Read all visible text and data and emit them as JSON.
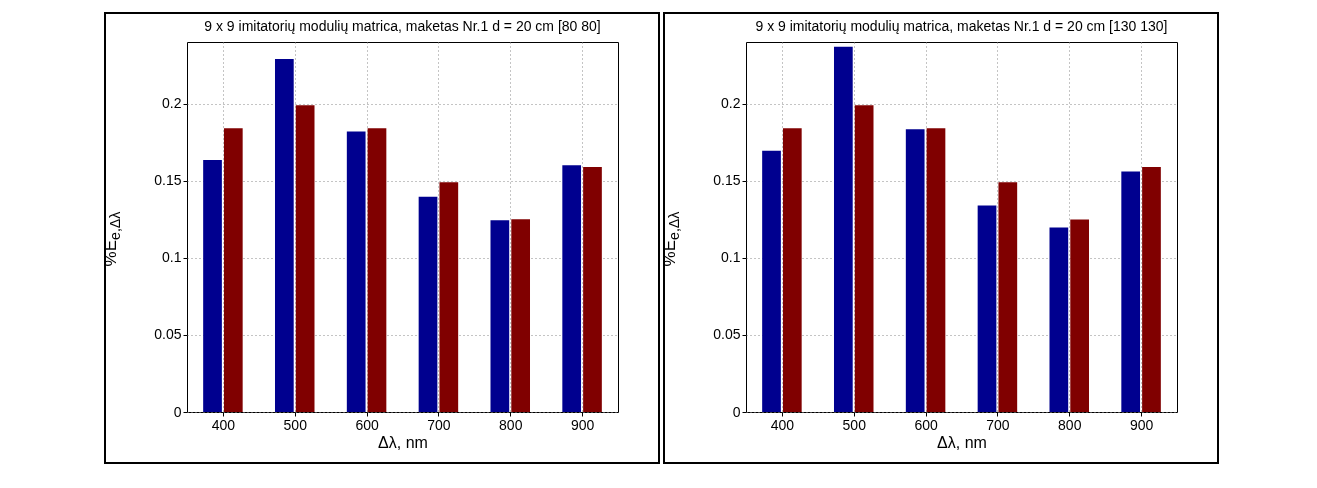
{
  "chart_data": [
    {
      "type": "bar",
      "title": "9 x 9 imitatorių modulių matrica, maketas Nr.1 d = 20 cm [80 80]",
      "xlabel": "Δλ, nm",
      "ylabel": "%E$_{e,Δλ}$",
      "categories": [
        "400",
        "500",
        "600",
        "700",
        "800",
        "900"
      ],
      "series": [
        {
          "color": "#00008f",
          "values": [
            0.1635,
            0.229,
            0.182,
            0.1396,
            0.1244,
            0.16
          ]
        },
        {
          "color": "#800000",
          "values": [
            0.184,
            0.199,
            0.184,
            0.149,
            0.125,
            0.159
          ]
        }
      ],
      "ylim": [
        0,
        0.24
      ],
      "yticks": [
        0,
        0.05,
        0.1,
        0.15,
        0.2
      ],
      "grid": true,
      "legend": false
    },
    {
      "type": "bar",
      "title": "9 x 9 imitatorių modulių matrica, maketas Nr.1 d = 20 cm [130 130]",
      "xlabel": "Δλ, nm",
      "ylabel": "%E$_{e,Δλ}$",
      "categories": [
        "400",
        "500",
        "600",
        "700",
        "800",
        "900"
      ],
      "series": [
        {
          "color": "#00008f",
          "values": [
            0.1695,
            0.237,
            0.1834,
            0.134,
            0.1197,
            0.156
          ]
        },
        {
          "color": "#800000",
          "values": [
            0.184,
            0.199,
            0.184,
            0.149,
            0.1248,
            0.159
          ]
        }
      ],
      "ylim": [
        0,
        0.24
      ],
      "yticks": [
        0,
        0.05,
        0.1,
        0.15,
        0.2
      ],
      "grid": true,
      "legend": false
    }
  ]
}
